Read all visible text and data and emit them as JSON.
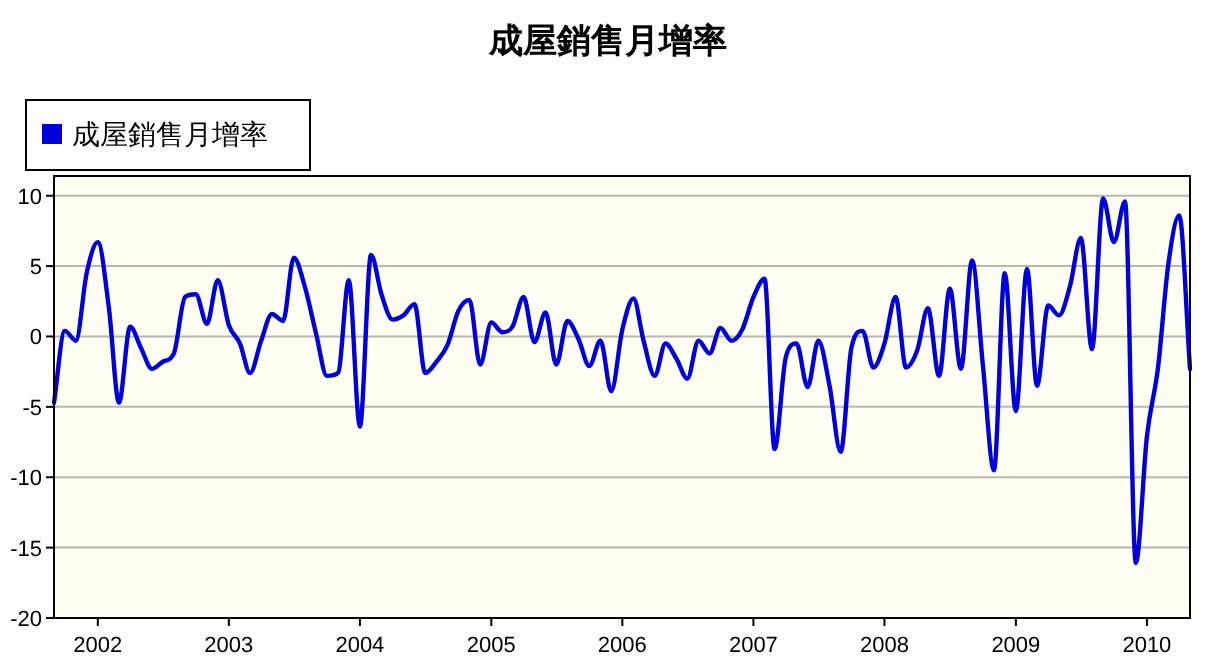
{
  "chart_data": {
    "type": "line",
    "title": "成屋銷售月增率",
    "x": [
      "2001-09",
      "2001-10",
      "2001-11",
      "2001-12",
      "2002-01",
      "2002-02",
      "2002-03",
      "2002-04",
      "2002-05",
      "2002-06",
      "2002-07",
      "2002-08",
      "2002-09",
      "2002-10",
      "2002-11",
      "2002-12",
      "2003-01",
      "2003-02",
      "2003-03",
      "2003-04",
      "2003-05",
      "2003-06",
      "2003-07",
      "2003-08",
      "2003-09",
      "2003-10",
      "2003-11",
      "2003-12",
      "2004-01",
      "2004-02",
      "2004-03",
      "2004-04",
      "2004-05",
      "2004-06",
      "2004-07",
      "2004-08",
      "2004-09",
      "2004-10",
      "2004-11",
      "2004-12",
      "2005-01",
      "2005-02",
      "2005-03",
      "2005-04",
      "2005-05",
      "2005-06",
      "2005-07",
      "2005-08",
      "2005-09",
      "2005-10",
      "2005-11",
      "2005-12",
      "2006-01",
      "2006-02",
      "2006-03",
      "2006-04",
      "2006-05",
      "2006-06",
      "2006-07",
      "2006-08",
      "2006-09",
      "2006-10",
      "2006-11",
      "2006-12",
      "2007-01",
      "2007-02",
      "2007-03",
      "2007-04",
      "2007-05",
      "2007-06",
      "2007-07",
      "2007-08",
      "2007-09",
      "2007-10",
      "2007-11",
      "2007-12",
      "2008-01",
      "2008-02",
      "2008-03",
      "2008-04",
      "2008-05",
      "2008-06",
      "2008-07",
      "2008-08",
      "2008-09",
      "2008-10",
      "2008-11",
      "2008-12",
      "2009-01",
      "2009-02",
      "2009-03",
      "2009-04",
      "2009-05",
      "2009-06",
      "2009-07",
      "2009-08",
      "2009-09",
      "2009-10",
      "2009-11",
      "2009-12",
      "2010-01",
      "2010-02",
      "2010-03",
      "2010-04",
      "2010-05"
    ],
    "series": [
      {
        "name": "成屋銷售月增率",
        "color": "#0000dd",
        "values": [
          -4.7,
          0.4,
          -0.3,
          4.5,
          6.7,
          2.0,
          -4.7,
          0.7,
          -0.8,
          -2.3,
          -1.8,
          -1.2,
          2.8,
          3.0,
          0.9,
          4.0,
          0.8,
          -0.5,
          -2.6,
          -0.3,
          1.6,
          1.1,
          5.6,
          3.5,
          0.2,
          -2.8,
          -2.6,
          4.0,
          -6.4,
          5.8,
          3.0,
          1.2,
          1.5,
          2.3,
          -2.6,
          -1.8,
          -0.6,
          1.8,
          2.6,
          -2.0,
          1.0,
          0.3,
          0.7,
          2.8,
          -0.4,
          1.7,
          -2.0,
          1.1,
          -0.2,
          -2.1,
          -0.3,
          -3.9,
          0.5,
          2.7,
          -0.3,
          -2.8,
          -0.5,
          -1.6,
          -3.0,
          -0.3,
          -1.2,
          0.6,
          -0.3,
          0.5,
          2.8,
          4.1,
          -8.0,
          -1.5,
          -0.5,
          -3.6,
          -0.3,
          -3.5,
          -8.2,
          -0.8,
          0.4,
          -2.2,
          -0.5,
          2.8,
          -2.2,
          -1.0,
          2.0,
          -2.8,
          3.4,
          -2.3,
          5.4,
          -2.0,
          -9.5,
          4.5,
          -5.3,
          4.8,
          -3.5,
          2.2,
          1.5,
          3.6,
          7.0,
          -0.9,
          9.8,
          6.7,
          9.6,
          -16.1,
          -7.1,
          -2.2,
          5.0,
          8.6,
          -2.3
        ]
      }
    ],
    "xlim": [
      "2001-09",
      "2010-05"
    ],
    "xticks": [
      "2002",
      "2003",
      "2004",
      "2005",
      "2006",
      "2007",
      "2008",
      "2009",
      "2010"
    ],
    "ylim": [
      -20,
      11.4
    ],
    "yticks": [
      -20,
      -15,
      -10,
      -5,
      0,
      5,
      10
    ],
    "grid": "y",
    "legend": "top left",
    "marker": "none",
    "line_style": "solid"
  }
}
